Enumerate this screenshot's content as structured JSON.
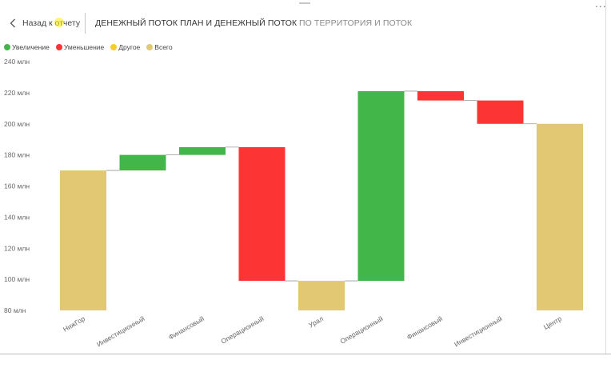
{
  "header": {
    "back_label": "Назад к отчету",
    "tabs": [
      {
        "label": "ДЕНЕЖНЫЙ ПОТОК ПЛАН И ДЕНЕЖНЫЙ ПОТОК",
        "active": true
      },
      {
        "label": "ПО ТЕРРИТОРИЯ И ПОТОК",
        "active": false
      }
    ]
  },
  "icons": {
    "back": "chevron-left-icon",
    "more": "more-options-icon",
    "cursor": "hand-cursor-icon"
  },
  "colors": {
    "increase": "#43b649",
    "decrease": "#fd3434",
    "other": "#f6cd2d",
    "total": "#e2c872"
  },
  "chart_data": {
    "type": "waterfall",
    "title": "",
    "xlabel": "",
    "ylabel": "",
    "ylim": [
      80,
      240
    ],
    "y_unit": "млн",
    "yticks": [
      "80 млн",
      "100 млн",
      "120 млн",
      "140 млн",
      "160 млн",
      "180 млн",
      "200 млн",
      "220 млн",
      "240 млн"
    ],
    "legend": {
      "position": "top-left",
      "entries": [
        {
          "key": "increase",
          "label": "Увеличение"
        },
        {
          "key": "decrease",
          "label": "Уменьшение"
        },
        {
          "key": "other",
          "label": "Другое"
        },
        {
          "key": "total",
          "label": "Всего"
        }
      ]
    },
    "categories": [
      "НижГор",
      "Инвестиционный",
      "Финансовый",
      "Операционный",
      "Урал",
      "Операционный",
      "Финансовый",
      "Инвестиционный",
      "Центр"
    ],
    "bars": [
      {
        "kind": "total",
        "start": 80,
        "end": 170
      },
      {
        "kind": "increase",
        "start": 170,
        "end": 180
      },
      {
        "kind": "increase",
        "start": 180,
        "end": 185
      },
      {
        "kind": "decrease",
        "start": 185,
        "end": 99
      },
      {
        "kind": "total",
        "start": 80,
        "end": 99
      },
      {
        "kind": "increase",
        "start": 99,
        "end": 221
      },
      {
        "kind": "decrease",
        "start": 221,
        "end": 215
      },
      {
        "kind": "decrease",
        "start": 215,
        "end": 200
      },
      {
        "kind": "total",
        "start": 80,
        "end": 200
      }
    ],
    "grid": false
  }
}
